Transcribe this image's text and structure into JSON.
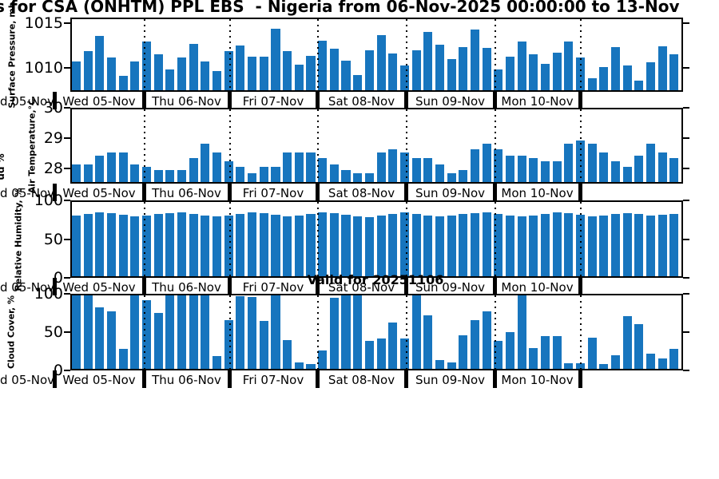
{
  "title": "s for CSA (ONHTM) PPL EBS  - Nigeria from 06-Nov-2025 00:00:00 to 13-Nov",
  "valid_label": "Valid for 20251106",
  "clipped_ylabel_fragment": "ud %",
  "x_axis": {
    "clipped_first_label": "d 05-Nov",
    "day_labels": [
      "Wed 05-Nov",
      "Thu 06-Nov",
      "Fri 07-Nov",
      "Sat 08-Nov",
      "Sun 09-Nov",
      "Mon 10-Nov"
    ]
  },
  "colors": {
    "bar": "#1775be",
    "axis": "#000000",
    "background": "#ffffff"
  },
  "chart_data": [
    {
      "type": "bar",
      "ylabel": "Surface Pressure, mb",
      "ylim": [
        1007.3,
        1015.6
      ],
      "yticks": [
        1010,
        1015
      ],
      "ytick_labels": [
        "1010",
        "1015"
      ],
      "values": [
        1010.6,
        1011.8,
        1013.5,
        1011.0,
        1008.9,
        1010.6,
        1012.9,
        1011.4,
        1009.7,
        1011.0,
        1012.6,
        1010.6,
        1009.5,
        1011.8,
        1012.4,
        1011.1,
        1011.1,
        1014.3,
        1011.8,
        1010.2,
        1011.2,
        1013.0,
        1012.0,
        1010.7,
        1009.0,
        1011.9,
        1013.6,
        1011.5,
        1010.1,
        1011.9,
        1014.0,
        1012.5,
        1010.9,
        1012.2,
        1014.2,
        1012.1,
        1009.7,
        1011.1,
        1012.9,
        1011.4,
        1010.3,
        1011.6,
        1012.9,
        1011.0,
        1008.7,
        1009.9,
        1012.2,
        1010.1,
        1008.4,
        1010.5,
        1012.3,
        1011.4
      ]
    },
    {
      "type": "bar",
      "ylabel": "Air Temperature,°C",
      "ylim": [
        27.5,
        30
      ],
      "yticks": [
        28,
        29,
        30
      ],
      "ytick_labels": [
        "28",
        "29",
        "30"
      ],
      "values": [
        28.1,
        28.1,
        28.4,
        28.5,
        28.5,
        28.1,
        28.0,
        27.9,
        27.9,
        27.9,
        28.3,
        28.8,
        28.5,
        28.2,
        28.0,
        27.8,
        28.0,
        28.0,
        28.5,
        28.5,
        28.5,
        28.3,
        28.1,
        27.9,
        27.8,
        27.8,
        28.5,
        28.6,
        28.5,
        28.3,
        28.3,
        28.1,
        27.8,
        27.9,
        28.6,
        28.8,
        28.6,
        28.4,
        28.4,
        28.3,
        28.2,
        28.2,
        28.8,
        28.9,
        28.8,
        28.5,
        28.2,
        28.0,
        28.4,
        28.8,
        28.5,
        28.3
      ]
    },
    {
      "type": "bar",
      "ylabel": "Relative Humidity, %",
      "ylim": [
        0,
        100
      ],
      "yticks": [
        0,
        50,
        100
      ],
      "ytick_labels": [
        "0",
        "50",
        "100"
      ],
      "values": [
        80,
        82,
        84,
        83,
        81,
        79,
        80,
        82,
        83,
        84,
        82,
        80,
        79,
        80,
        82,
        84,
        83,
        81,
        79,
        80,
        82,
        84,
        83,
        81,
        79,
        78,
        80,
        82,
        84,
        82,
        80,
        79,
        80,
        82,
        83,
        84,
        82,
        80,
        79,
        80,
        82,
        84,
        83,
        81,
        79,
        80,
        82,
        83,
        82,
        80,
        81,
        82
      ]
    },
    {
      "type": "bar",
      "ylabel": "Cloud Cover, %",
      "ylim": [
        0,
        100
      ],
      "yticks": [
        0,
        50,
        100
      ],
      "ytick_labels": [
        "0",
        "50",
        "100"
      ],
      "values": [
        100,
        100,
        82,
        77,
        27,
        100,
        92,
        74,
        100,
        100,
        100,
        100,
        17,
        65,
        97,
        96,
        64,
        98,
        38,
        9,
        6,
        25,
        95,
        100,
        100,
        37,
        40,
        62,
        40,
        100,
        71,
        12,
        8,
        45,
        65,
        77,
        37,
        49,
        98,
        28,
        44,
        44,
        7,
        7,
        41,
        6,
        18,
        70,
        60,
        20,
        14,
        27
      ]
    }
  ]
}
